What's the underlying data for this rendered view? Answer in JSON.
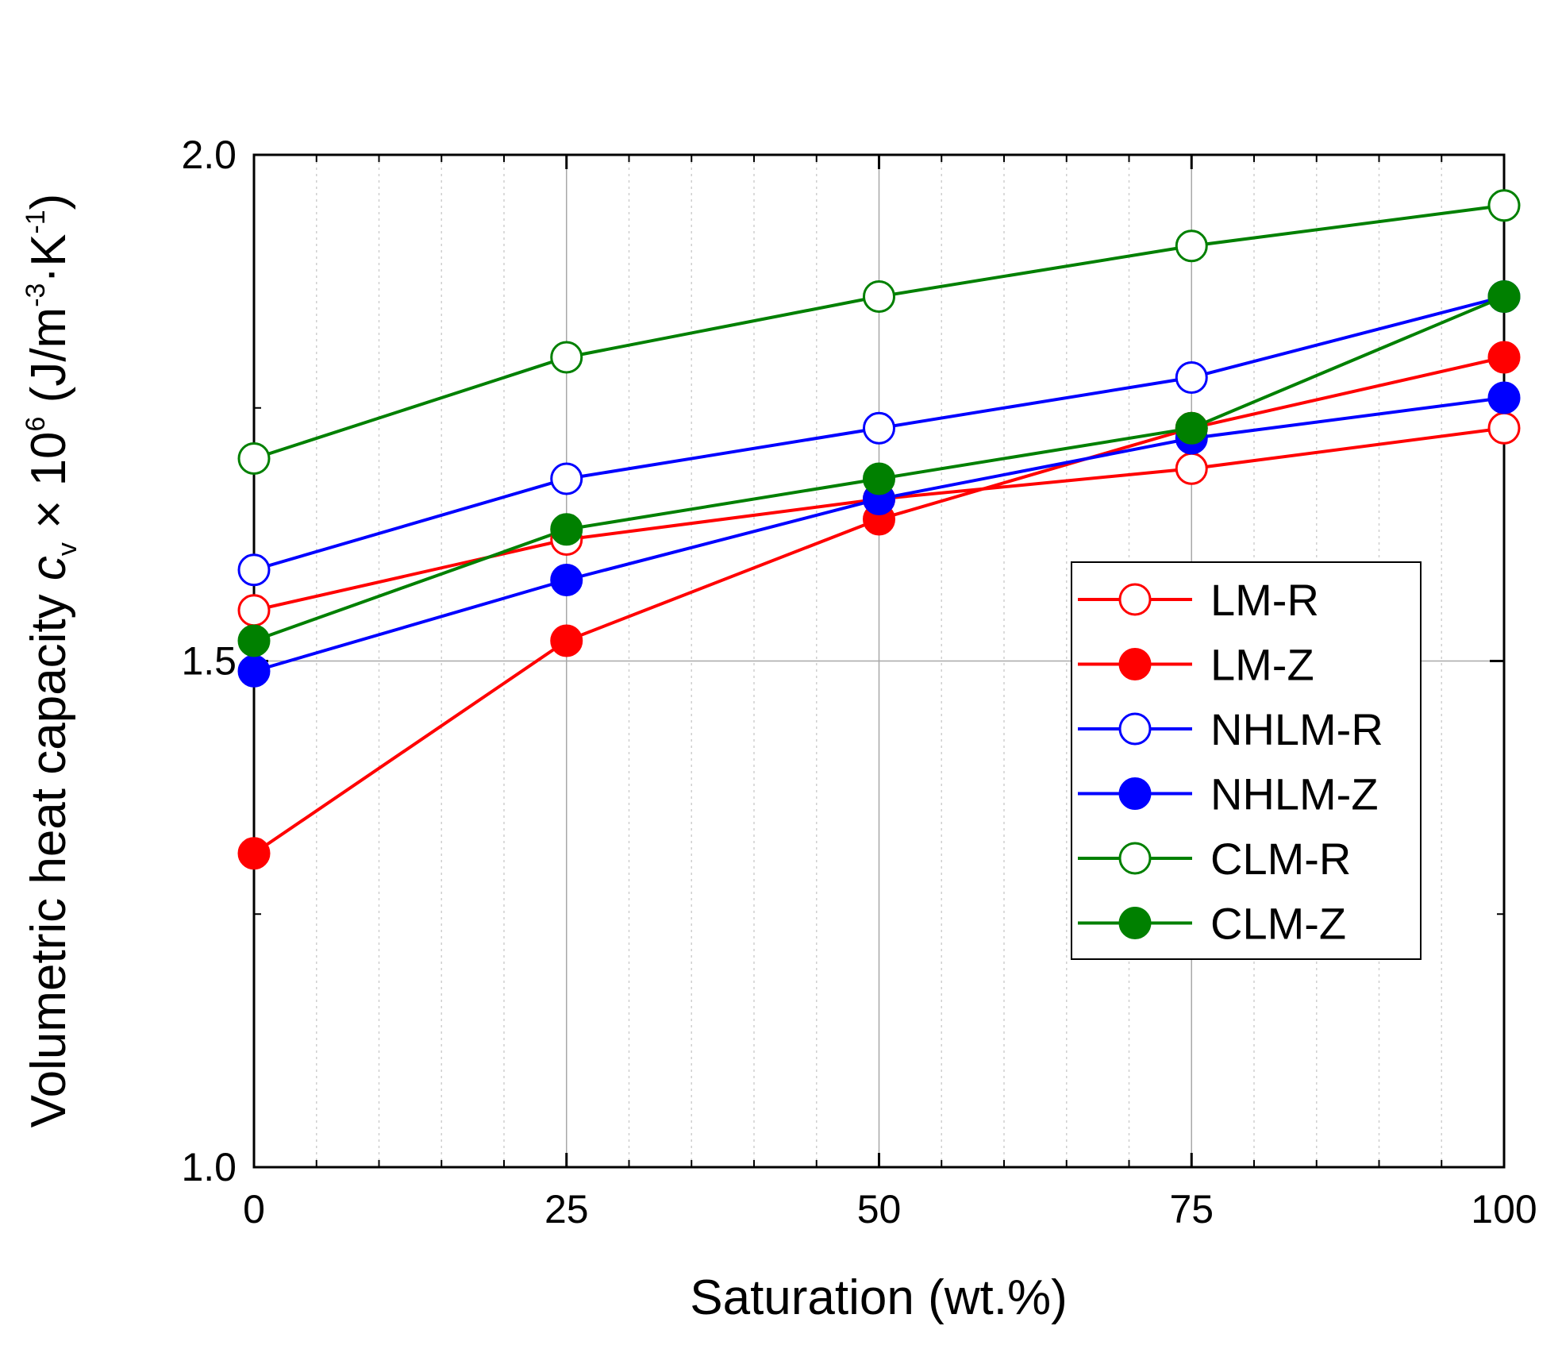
{
  "chart_data": {
    "type": "line",
    "xlabel": "Saturation (wt.%)",
    "ylabel": {
      "prefix": "Volumetric heat capacity ",
      "symbol": "c",
      "subscript": "v",
      "times": " × 10",
      "exponent": "6",
      "unit_open": " (J/m",
      "unit_exp1": "-3",
      "unit_mid": "·K",
      "unit_exp2": "-1",
      "unit_close": ")"
    },
    "xlim": [
      0,
      100
    ],
    "ylim": [
      1.0,
      2.0
    ],
    "x_ticks": [
      0,
      25,
      50,
      75,
      100
    ],
    "x_tick_labels": [
      "0",
      "25",
      "50",
      "75",
      "100"
    ],
    "y_ticks": [
      1.0,
      1.5,
      2.0
    ],
    "y_tick_labels": [
      "1.0",
      "1.5",
      "2.0"
    ],
    "x_minor_step": 5,
    "y_minor_step": 0.25,
    "grid": true,
    "legend_position": "center-right",
    "x": [
      0,
      25,
      50,
      75,
      100
    ],
    "series": [
      {
        "name": "LM-R",
        "color": "#ff0000",
        "marker": "open-circle",
        "values": [
          1.55,
          1.62,
          1.66,
          1.69,
          1.73
        ]
      },
      {
        "name": "LM-Z",
        "color": "#ff0000",
        "marker": "filled-circle",
        "values": [
          1.31,
          1.52,
          1.64,
          1.73,
          1.8
        ]
      },
      {
        "name": "NHLM-R",
        "color": "#0000ff",
        "marker": "open-circle",
        "values": [
          1.59,
          1.68,
          1.73,
          1.78,
          1.86
        ]
      },
      {
        "name": "NHLM-Z",
        "color": "#0000ff",
        "marker": "filled-circle",
        "values": [
          1.49,
          1.58,
          1.66,
          1.72,
          1.76
        ]
      },
      {
        "name": "CLM-R",
        "color": "#008000",
        "marker": "open-circle",
        "values": [
          1.7,
          1.8,
          1.86,
          1.91,
          1.95
        ]
      },
      {
        "name": "CLM-Z",
        "color": "#008000",
        "marker": "filled-circle",
        "values": [
          1.52,
          1.63,
          1.68,
          1.73,
          1.86
        ]
      }
    ]
  }
}
